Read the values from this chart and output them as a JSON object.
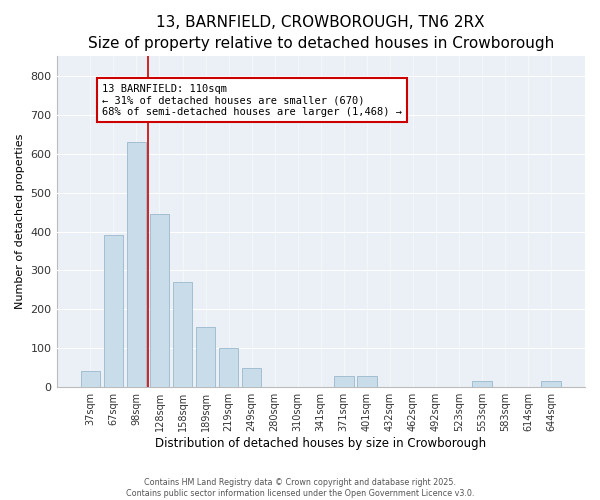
{
  "title": "13, BARNFIELD, CROWBOROUGH, TN6 2RX",
  "subtitle": "Size of property relative to detached houses in Crowborough",
  "xlabel": "Distribution of detached houses by size in Crowborough",
  "ylabel": "Number of detached properties",
  "bar_labels": [
    "37sqm",
    "67sqm",
    "98sqm",
    "128sqm",
    "158sqm",
    "189sqm",
    "219sqm",
    "249sqm",
    "280sqm",
    "310sqm",
    "341sqm",
    "371sqm",
    "401sqm",
    "432sqm",
    "462sqm",
    "492sqm",
    "523sqm",
    "553sqm",
    "583sqm",
    "614sqm",
    "644sqm"
  ],
  "bar_values": [
    42,
    390,
    630,
    445,
    270,
    155,
    100,
    50,
    0,
    0,
    0,
    30,
    30,
    0,
    0,
    0,
    0,
    15,
    0,
    0,
    15
  ],
  "bar_color": "#c8dcea",
  "bar_edge_color": "#9ab8cc",
  "annotation_text_line1": "13 BARNFIELD: 110sqm",
  "annotation_text_line2": "← 31% of detached houses are smaller (670)",
  "annotation_text_line3": "68% of semi-detached houses are larger (1,468) →",
  "red_line_color": "#cc0000",
  "annotation_box_edge_color": "#cc0000",
  "ylim": [
    0,
    850
  ],
  "yticks": [
    0,
    100,
    200,
    300,
    400,
    500,
    600,
    700,
    800
  ],
  "footer_line1": "Contains HM Land Registry data © Crown copyright and database right 2025.",
  "footer_line2": "Contains public sector information licensed under the Open Government Licence v3.0.",
  "bg_color": "#ffffff",
  "plot_bg_color": "#eaf0f6",
  "grid_color": "#ffffff",
  "title_fontsize": 11,
  "subtitle_fontsize": 9
}
